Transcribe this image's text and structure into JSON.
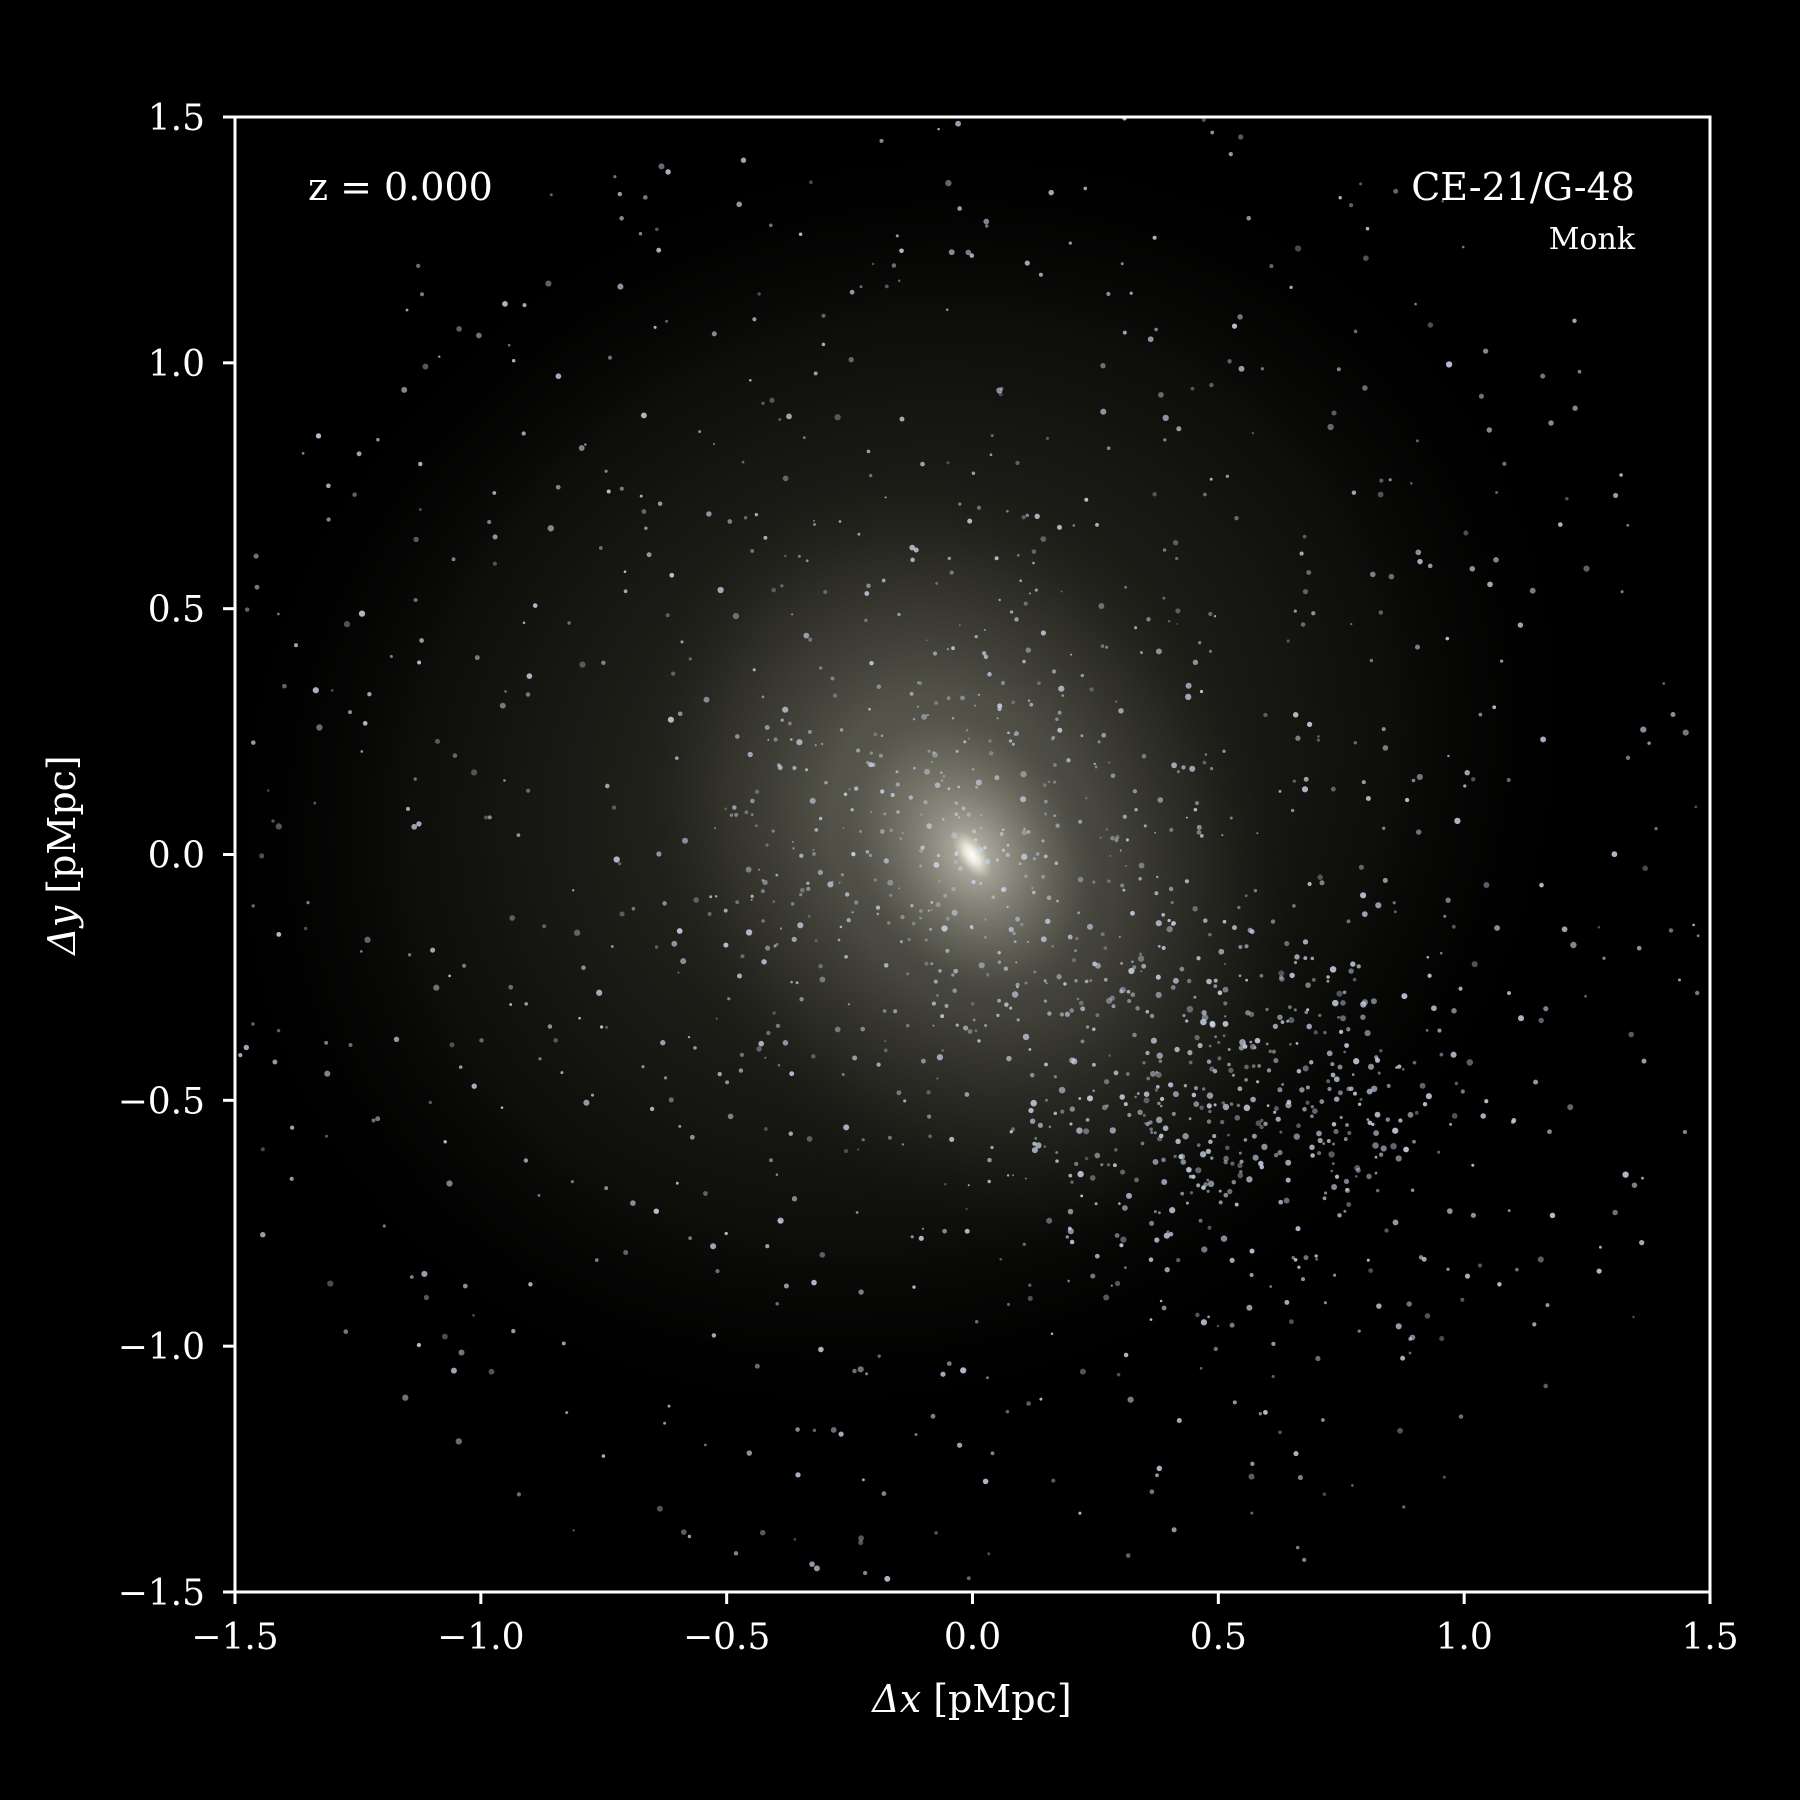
{
  "chart_data": {
    "type": "scatter",
    "description_kind": "simulation-projection-image",
    "xlabel_symbol": "Δx",
    "xlabel_unit": "[pMpc]",
    "ylabel_symbol": "Δy",
    "ylabel_unit": "[pMpc]",
    "xlim": [
      -1.5,
      1.5
    ],
    "ylim": [
      -1.5,
      1.5
    ],
    "xticks": [
      -1.5,
      -1.0,
      -0.5,
      0.0,
      0.5,
      1.0,
      1.5
    ],
    "yticks": [
      -1.5,
      -1.0,
      -0.5,
      0.0,
      0.5,
      1.0,
      1.5
    ],
    "xtick_labels": [
      "−1.5",
      "−1.0",
      "−0.5",
      "0.0",
      "0.5",
      "1.0",
      "1.5"
    ],
    "ytick_labels": [
      "−1.5",
      "−1.0",
      "−0.5",
      "0.0",
      "0.5",
      "1.0",
      "1.5"
    ],
    "grid": false,
    "background_color": "#000000",
    "halo_color": "#d8d6c4",
    "point_color": "#c8d2e6",
    "center": [
      0.0,
      0.0
    ],
    "annotations": {
      "redshift": "z = 0.000",
      "object_id": "CE-21/G-48",
      "model": "Monk"
    }
  }
}
